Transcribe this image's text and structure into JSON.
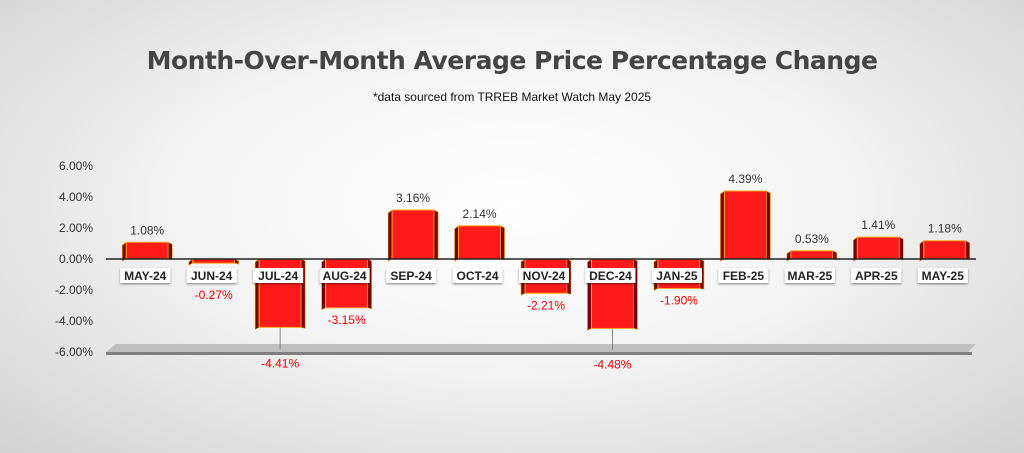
{
  "chart_data": {
    "type": "bar",
    "title": "Month-Over-Month Average Price Percentage Change",
    "subtitle": "*data sourced from TRREB Market Watch May 2025",
    "xlabel": "",
    "ylabel": "",
    "ylim": [
      -6,
      6
    ],
    "yticks": [
      6,
      4,
      2,
      0,
      -2,
      -4,
      -6
    ],
    "ytick_labels": [
      "6.00%",
      "4.00%",
      "2.00%",
      "0.00%",
      "-2.00%",
      "-4.00%",
      "-6.00%"
    ],
    "categories": [
      "MAY-24",
      "JUN-24",
      "JUL-24",
      "AUG-24",
      "SEP-24",
      "OCT-24",
      "NOV-24",
      "DEC-24",
      "JAN-25",
      "FEB-25",
      "MAR-25",
      "APR-25",
      "MAY-25"
    ],
    "values": [
      1.08,
      -0.27,
      -4.41,
      -3.15,
      3.16,
      2.14,
      -2.21,
      -4.48,
      -1.9,
      4.39,
      0.53,
      1.41,
      1.18
    ],
    "data_labels": [
      "1.08%",
      "-0.27%",
      "-4.41%",
      "-3.15%",
      "3.16%",
      "2.14%",
      "-2.21%",
      "-4.48%",
      "-1.90%",
      "4.39%",
      "0.53%",
      "1.41%",
      "1.18%"
    ],
    "colors": {
      "bar_front": "#ff1a1a",
      "bar_side": "#7a0000",
      "bar_outline": "#f5a623",
      "positive_label": "#333333",
      "negative_label": "#ff0000",
      "axis_text": "#333333",
      "floor": "#a6a6a6",
      "category_box": "#ffffff"
    }
  }
}
